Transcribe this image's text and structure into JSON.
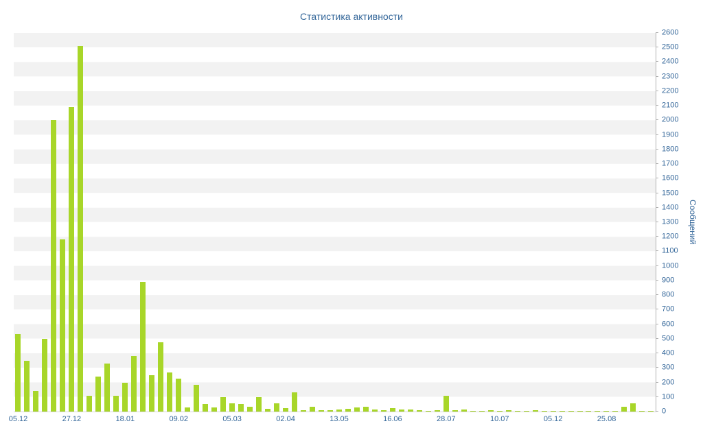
{
  "chart_data": {
    "type": "bar",
    "title": "Статистика активности",
    "xlabel": "",
    "ylabel": "Сообщений",
    "ylim": [
      0,
      2600
    ],
    "y_tick_step": 100,
    "y_ticks": [
      0,
      100,
      200,
      300,
      400,
      500,
      600,
      700,
      800,
      900,
      1000,
      1100,
      1200,
      1300,
      1400,
      1500,
      1600,
      1700,
      1800,
      1900,
      2000,
      2100,
      2200,
      2300,
      2400,
      2500,
      2600
    ],
    "legend": "off",
    "grid": "striped-bands",
    "bar_color": "#a8d629",
    "label_color": "#336699",
    "stripe_color": "#f2f2f2",
    "axis_color": "#b0b0b0",
    "x_tick_every": 6,
    "x_tick_labels": [
      "05.12",
      "27.12",
      "18.01",
      "09.02",
      "05.03",
      "02.04",
      "13.05",
      "16.06",
      "28.07",
      "10.07",
      "05.12",
      "25.08"
    ],
    "values": [
      530,
      350,
      140,
      500,
      2000,
      1180,
      2090,
      2510,
      110,
      240,
      330,
      110,
      200,
      380,
      890,
      250,
      475,
      270,
      225,
      30,
      185,
      50,
      30,
      100,
      55,
      50,
      35,
      100,
      20,
      55,
      25,
      130,
      10,
      35,
      8,
      10,
      12,
      20,
      30,
      35,
      15,
      10,
      25,
      12,
      15,
      10,
      6,
      8,
      110,
      10,
      15,
      6,
      5,
      8,
      6,
      8,
      5,
      5,
      8,
      5,
      5,
      4,
      5,
      4,
      5,
      4,
      4,
      5,
      35,
      55,
      4,
      4
    ]
  }
}
